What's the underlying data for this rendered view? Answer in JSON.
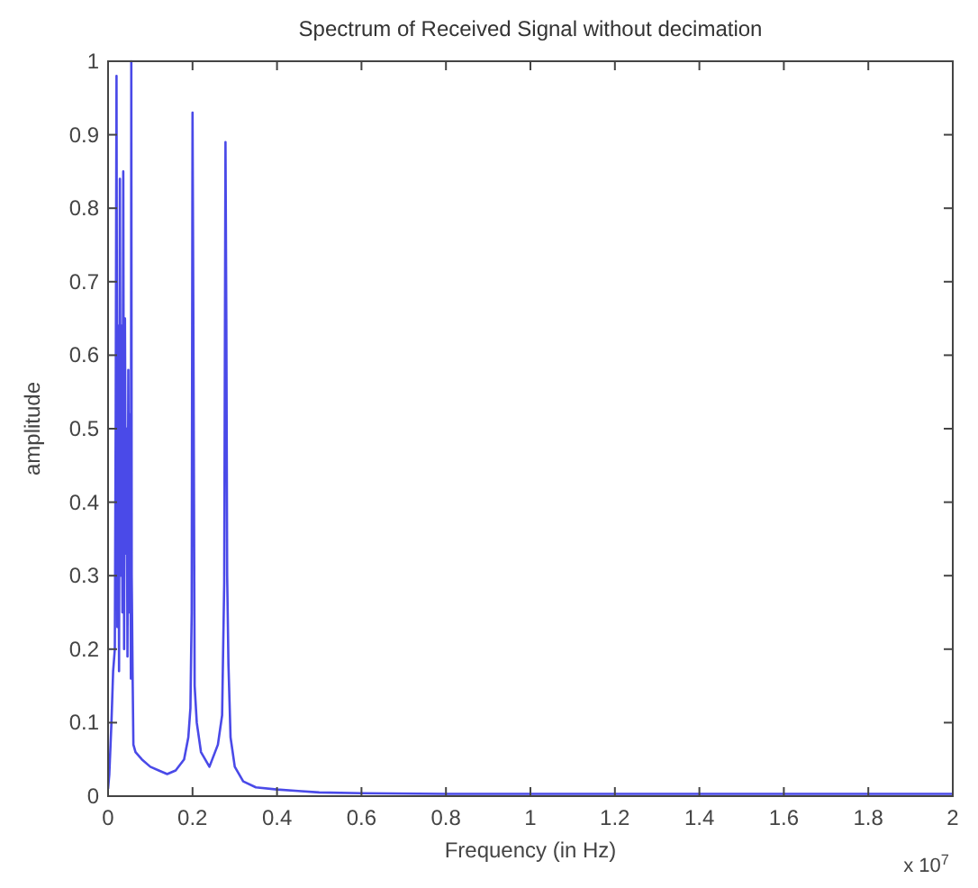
{
  "chart_data": {
    "type": "line",
    "title": "Spectrum of Received Signal without decimation",
    "xlabel": "Frequency (in Hz)",
    "ylabel": "amplitude",
    "annotations": [
      "x 10$^{7}$"
    ],
    "series": [
      {
        "color": "#4a4ae8",
        "x": [
          0,
          0.003,
          0.008,
          0.012,
          0.016,
          0.018,
          0.02,
          0.022,
          0.024,
          0.026,
          0.028,
          0.03,
          0.032,
          0.034,
          0.036,
          0.038,
          0.04,
          0.042,
          0.044,
          0.046,
          0.048,
          0.05,
          0.052,
          0.054,
          0.055,
          0.056,
          0.058,
          0.06,
          0.065,
          0.08,
          0.1,
          0.12,
          0.14,
          0.16,
          0.18,
          0.19,
          0.195,
          0.198,
          0.2,
          0.202,
          0.205,
          0.21,
          0.22,
          0.24,
          0.26,
          0.27,
          0.275,
          0.278,
          0.28,
          0.282,
          0.285,
          0.29,
          0.3,
          0.32,
          0.35,
          0.4,
          0.45,
          0.5,
          0.6,
          0.8,
          1,
          1.2,
          1.4,
          1.6,
          1.8,
          2
        ],
        "values": [
          0.01,
          0.03,
          0.1,
          0.17,
          0.2,
          0.5,
          0.98,
          0.23,
          0.64,
          0.17,
          0.84,
          0.3,
          0.64,
          0.25,
          0.85,
          0.2,
          0.65,
          0.33,
          0.5,
          0.19,
          0.58,
          0.25,
          0.52,
          0.16,
          1.0,
          0.3,
          0.17,
          0.07,
          0.06,
          0.05,
          0.04,
          0.035,
          0.03,
          0.035,
          0.05,
          0.08,
          0.12,
          0.25,
          0.93,
          0.64,
          0.15,
          0.1,
          0.06,
          0.04,
          0.07,
          0.11,
          0.29,
          0.89,
          0.65,
          0.3,
          0.18,
          0.08,
          0.04,
          0.02,
          0.012,
          0.009,
          0.007,
          0.005,
          0.004,
          0.003,
          0.003,
          0.003,
          0.003,
          0.003,
          0.003,
          0.003
        ]
      }
    ],
    "xlim": [
      0,
      2
    ],
    "xticks": [
      0,
      0.2,
      0.4,
      0.6,
      0.8,
      1,
      1.2,
      1.4,
      1.6,
      1.8,
      2
    ],
    "ylim": [
      0,
      1
    ],
    "yticks": [
      0,
      0.1,
      0.2,
      0.3,
      0.4,
      0.5,
      0.6,
      0.7,
      0.8,
      0.9,
      1
    ],
    "grid": false
  }
}
